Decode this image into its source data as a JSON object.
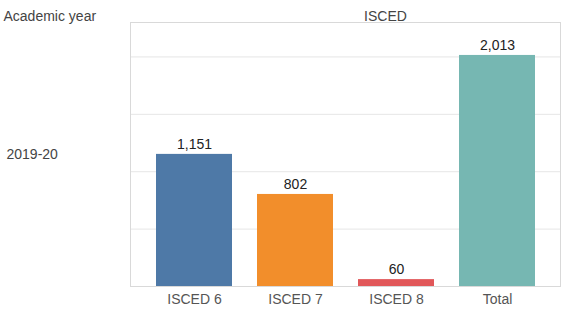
{
  "chart_data": {
    "type": "bar",
    "xlabel": "ISCED",
    "ylabel": "Academic year",
    "row_labels": [
      "2019-20"
    ],
    "categories": [
      "ISCED 6",
      "ISCED 7",
      "ISCED 8",
      "Total"
    ],
    "values": [
      1151,
      802,
      60,
      2013
    ],
    "value_labels": [
      "1,151",
      "802",
      "60",
      "2,013"
    ],
    "colors": [
      "#4e79a7",
      "#f28e2b",
      "#e15759",
      "#76b7b2"
    ],
    "ylim": [
      0,
      2300
    ],
    "yticks": [
      0,
      500,
      1000,
      1500,
      2000
    ],
    "grid": true,
    "data_labels": true,
    "tick_labels": "x"
  }
}
